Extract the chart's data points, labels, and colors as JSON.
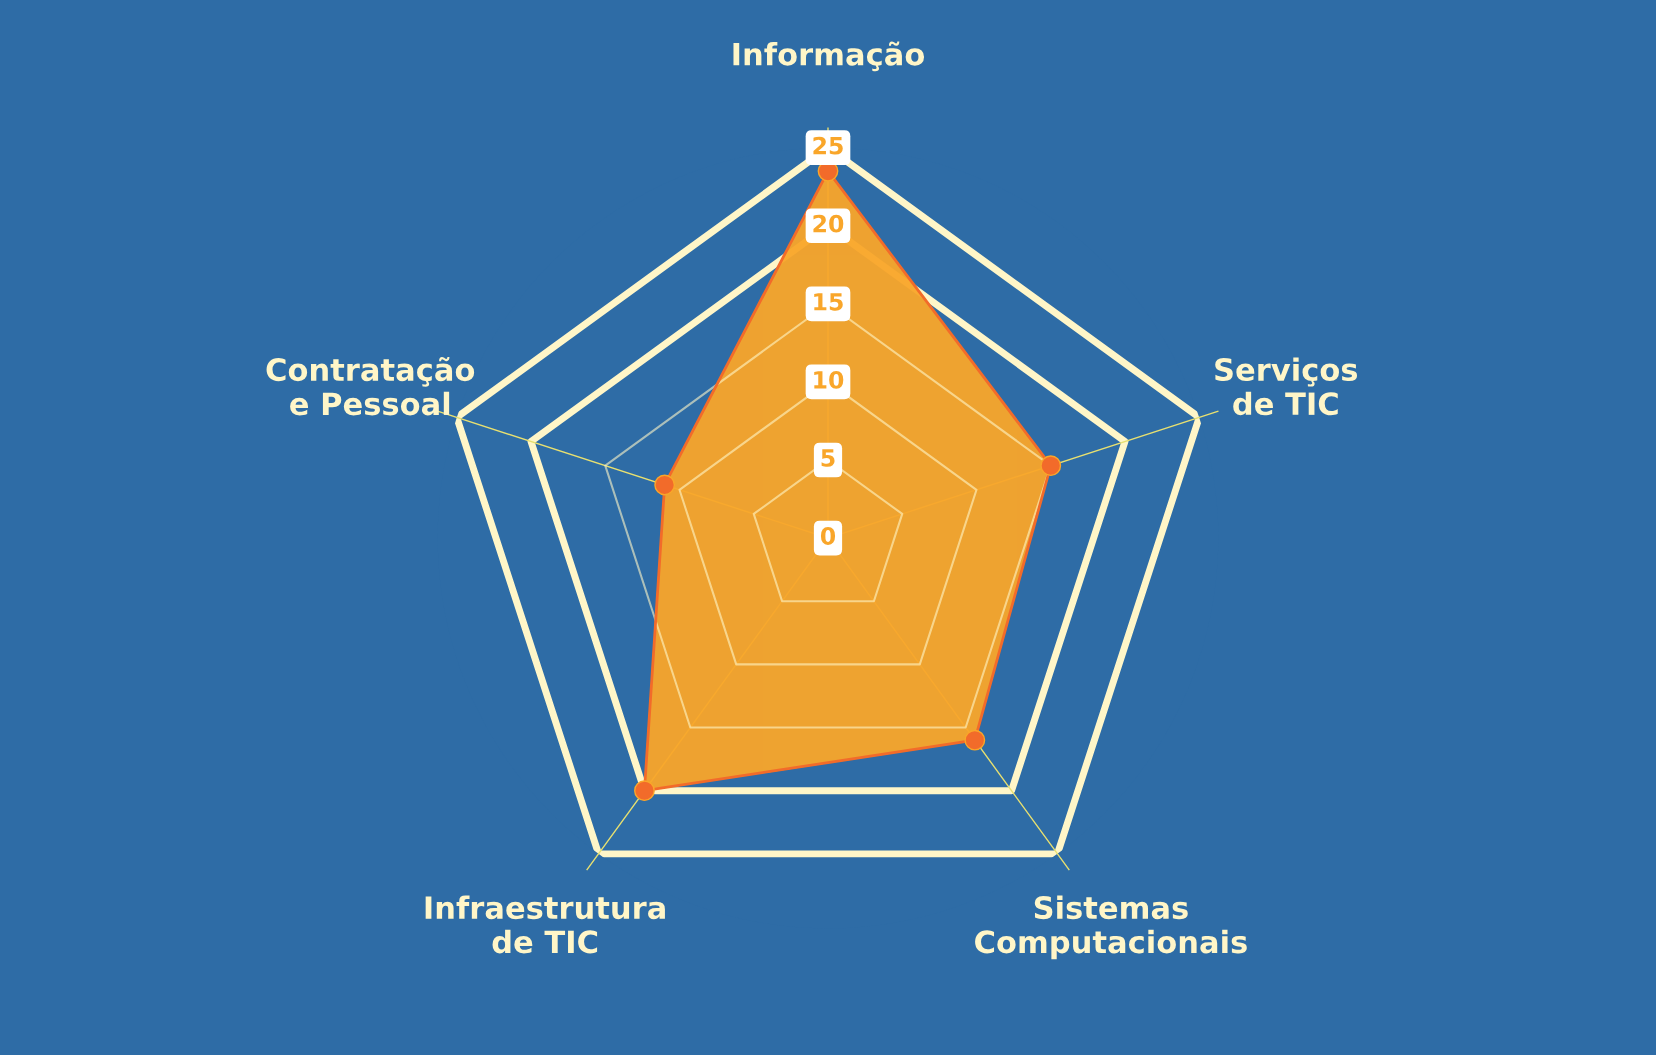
{
  "chart_data": {
    "type": "radar",
    "categories": [
      "Informação",
      "Serviços\nde TIC",
      "Sistemas\nComputacionais",
      "Infraestrutura\nde TIC",
      "Contratação\ne Pessoal"
    ],
    "series": [
      {
        "color": "#f9a62a",
        "values": [
          23.5,
          15,
          16,
          20,
          11
        ]
      }
    ],
    "ylim": [
      0,
      25
    ],
    "yticks": [
      0,
      5,
      10,
      15,
      20,
      25
    ],
    "marker": "circle",
    "line_style": "solid",
    "grid": true
  }
}
